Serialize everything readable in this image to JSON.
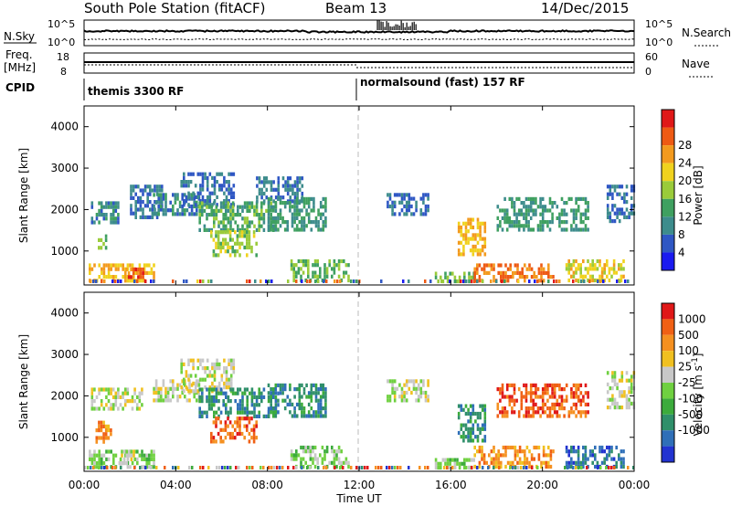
{
  "header": {
    "station": "South Pole Station (fitACF)",
    "beam": "Beam 13",
    "date": "14/Dec/2015"
  },
  "top_panels": {
    "nsky_label": "N.Sky",
    "nsky_ticks": [
      "10^5",
      "10^0"
    ],
    "nsearch_label": "N.Search",
    "nsearch_ticks": [
      "10^5",
      "10^0"
    ],
    "freq_label_1": "Freq.",
    "freq_label_2": "[MHz]",
    "freq_ticks": [
      "18",
      "8"
    ],
    "nave_label": "Nave",
    "nave_ticks": [
      "60",
      "0"
    ],
    "cpid_label": "CPID",
    "cpid_segments": [
      {
        "label": "themis 3300 RF",
        "start_hour": 0
      },
      {
        "label": "normalsound (fast) 157 RF",
        "start_hour": 12
      }
    ]
  },
  "time_axis": {
    "label": "Time UT",
    "ticks": [
      "00:00",
      "04:00",
      "08:00",
      "12:00",
      "16:00",
      "20:00",
      "00:00"
    ]
  },
  "chart_data": [
    {
      "type": "heatmap",
      "name": "power-panel",
      "ylabel": "Slant Range [km]",
      "xlabel": "",
      "x_range_hours": [
        0,
        24
      ],
      "ylim": [
        180,
        4500
      ],
      "yticks": [
        1000,
        2000,
        3000,
        4000
      ],
      "colorbar_label": "Power [dB]",
      "colorbar_ticks": [
        "4",
        "8",
        "12",
        "16",
        "20",
        "24",
        "28"
      ],
      "colorbar_colors": [
        "#1a1af0",
        "#2f57c4",
        "#3d8c8c",
        "#3fa060",
        "#9acb3a",
        "#f0d21e",
        "#f39a1e",
        "#ee5a14",
        "#e01818"
      ],
      "echo_regions": [
        {
          "t0": 0.2,
          "t1": 3.0,
          "r0": 280,
          "r1": 700,
          "v": 22
        },
        {
          "t0": 1.8,
          "t1": 2.6,
          "r0": 400,
          "r1": 600,
          "v": 28
        },
        {
          "t0": 0.3,
          "t1": 1.5,
          "r0": 1700,
          "r1": 2200,
          "v": 8
        },
        {
          "t0": 0.6,
          "t1": 1.0,
          "r0": 1050,
          "r1": 1400,
          "v": 14
        },
        {
          "t0": 2.0,
          "t1": 3.4,
          "r0": 1800,
          "r1": 2600,
          "v": 6
        },
        {
          "t0": 3.0,
          "t1": 5.0,
          "r0": 1900,
          "r1": 2400,
          "v": 8
        },
        {
          "t0": 4.2,
          "t1": 6.5,
          "r0": 2100,
          "r1": 2900,
          "v": 6
        },
        {
          "t0": 5.0,
          "t1": 8.5,
          "r0": 1500,
          "r1": 2200,
          "v": 12
        },
        {
          "t0": 5.5,
          "t1": 7.5,
          "r0": 900,
          "r1": 1500,
          "v": 16
        },
        {
          "t0": 7.5,
          "t1": 9.5,
          "r0": 2200,
          "r1": 2800,
          "v": 6
        },
        {
          "t0": 8.0,
          "t1": 10.5,
          "r0": 1500,
          "r1": 2300,
          "v": 10
        },
        {
          "t0": 9.0,
          "t1": 11.5,
          "r0": 300,
          "r1": 800,
          "v": 14
        },
        {
          "t0": 13.2,
          "t1": 15.0,
          "r0": 1900,
          "r1": 2400,
          "v": 6
        },
        {
          "t0": 16.3,
          "t1": 17.5,
          "r0": 900,
          "r1": 1800,
          "v": 22
        },
        {
          "t0": 15.3,
          "t1": 17.0,
          "r0": 250,
          "r1": 500,
          "v": 14
        },
        {
          "t0": 17.0,
          "t1": 20.5,
          "r0": 280,
          "r1": 700,
          "v": 26
        },
        {
          "t0": 18.0,
          "t1": 22.0,
          "r0": 1500,
          "r1": 2300,
          "v": 10
        },
        {
          "t0": 21.0,
          "t1": 23.5,
          "r0": 250,
          "r1": 800,
          "v": 20
        },
        {
          "t0": 22.8,
          "t1": 24.0,
          "r0": 1700,
          "r1": 2600,
          "v": 6
        }
      ]
    },
    {
      "type": "heatmap",
      "name": "velocity-panel",
      "ylabel": "Slant Range [km]",
      "xlabel": "Time UT",
      "x_range_hours": [
        0,
        24
      ],
      "ylim": [
        180,
        4500
      ],
      "yticks": [
        1000,
        2000,
        3000,
        4000
      ],
      "colorbar_label": "Velocity [m s^-1]",
      "colorbar_ticks": [
        "1000",
        "500",
        "100",
        "25",
        "-25",
        "-100",
        "-500",
        "-1000"
      ],
      "colorbar_colors": [
        "#2233d0",
        "#2f6fb8",
        "#2f8f6a",
        "#3cab3c",
        "#6fd040",
        "#c8c8c8",
        "#f0c020",
        "#f59020",
        "#f06014",
        "#e01818"
      ],
      "echo_regions": [
        {
          "t0": 0.2,
          "t1": 3.0,
          "r0": 280,
          "r1": 700,
          "v": 4
        },
        {
          "t0": 0.3,
          "t1": 2.5,
          "r0": 1700,
          "r1": 2200,
          "v": 5
        },
        {
          "t0": 0.5,
          "t1": 1.2,
          "r0": 900,
          "r1": 1400,
          "v": 7
        },
        {
          "t0": 1.5,
          "t1": 2.2,
          "r0": 400,
          "r1": 700,
          "v": 5
        },
        {
          "t0": 3.0,
          "t1": 5.0,
          "r0": 1900,
          "r1": 2400,
          "v": 5
        },
        {
          "t0": 4.2,
          "t1": 6.5,
          "r0": 2100,
          "r1": 2900,
          "v": 5
        },
        {
          "t0": 5.0,
          "t1": 8.5,
          "r0": 1500,
          "r1": 2200,
          "v": 2
        },
        {
          "t0": 5.5,
          "t1": 7.5,
          "r0": 900,
          "r1": 1500,
          "v": 8
        },
        {
          "t0": 8.0,
          "t1": 10.5,
          "r0": 1500,
          "r1": 2300,
          "v": 2
        },
        {
          "t0": 9.0,
          "t1": 11.5,
          "r0": 300,
          "r1": 800,
          "v": 4
        },
        {
          "t0": 13.2,
          "t1": 15.0,
          "r0": 1900,
          "r1": 2400,
          "v": 5
        },
        {
          "t0": 16.3,
          "t1": 17.5,
          "r0": 900,
          "r1": 1800,
          "v": 2
        },
        {
          "t0": 15.3,
          "t1": 17.0,
          "r0": 250,
          "r1": 500,
          "v": 4
        },
        {
          "t0": 17.0,
          "t1": 20.5,
          "r0": 280,
          "r1": 800,
          "v": 7
        },
        {
          "t0": 18.0,
          "t1": 22.0,
          "r0": 1500,
          "r1": 2300,
          "v": 8
        },
        {
          "t0": 21.0,
          "t1": 23.5,
          "r0": 250,
          "r1": 800,
          "v": 1
        },
        {
          "t0": 22.8,
          "t1": 24.0,
          "r0": 1700,
          "r1": 2600,
          "v": 5
        }
      ]
    }
  ]
}
